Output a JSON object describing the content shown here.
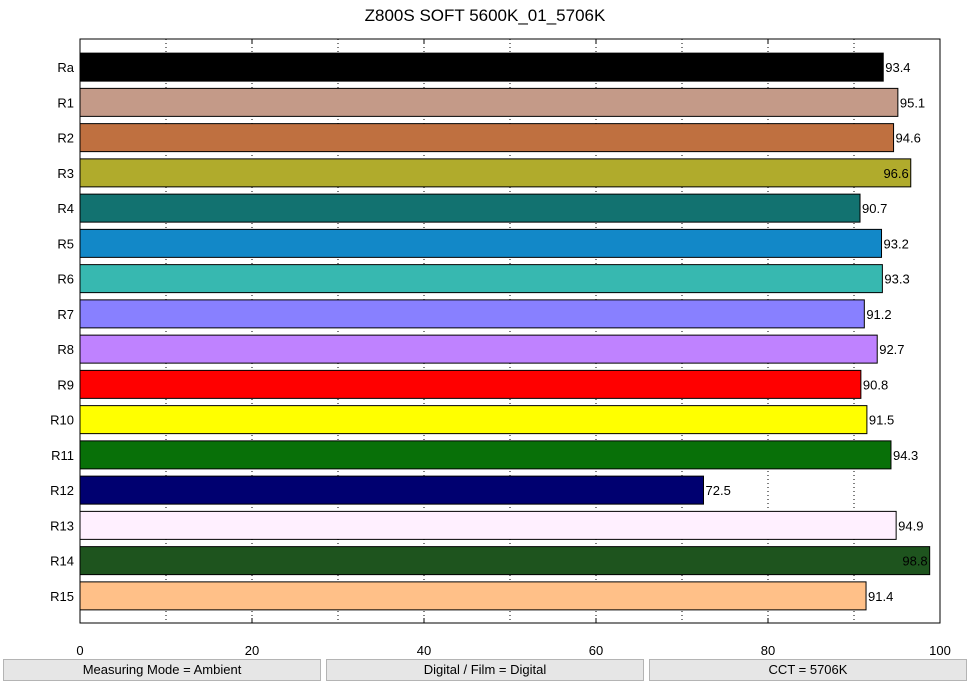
{
  "chart_data": {
    "type": "bar",
    "orientation": "horizontal",
    "title": "Z800S SOFT 5600K_01_5706K",
    "xlabel": "",
    "ylabel": "",
    "xlim": [
      0,
      100
    ],
    "x_ticks": [
      0,
      20,
      40,
      60,
      80,
      100
    ],
    "grid": "vertical dotted lines every 10",
    "categories": [
      "Ra",
      "R1",
      "R2",
      "R3",
      "R4",
      "R5",
      "R6",
      "R7",
      "R8",
      "R9",
      "R10",
      "R11",
      "R12",
      "R13",
      "R14",
      "R15"
    ],
    "values": [
      93.4,
      95.1,
      94.6,
      96.6,
      90.7,
      93.2,
      93.3,
      91.2,
      92.7,
      90.8,
      91.5,
      94.3,
      72.5,
      94.9,
      98.8,
      91.4
    ],
    "value_labels": [
      "93.4",
      "95.1",
      "94.6",
      "96.6",
      "90.7",
      "93.2",
      "93.3",
      "91.2",
      "92.7",
      "90.8",
      "91.5",
      "94.3",
      "72.5",
      "94.9",
      "98.8",
      "91.4"
    ],
    "colors": [
      "#000000",
      "#c49a88",
      "#bf7040",
      "#b0ab2c",
      "#127270",
      "#1288c8",
      "#37b8b0",
      "#8880ff",
      "#bf82ff",
      "#ff0000",
      "#ffff00",
      "#087008",
      "#000070",
      "#fff0ff",
      "#1e541e",
      "#ffc088"
    ]
  },
  "footer": {
    "measuring_mode": "Measuring Mode = Ambient",
    "digital_film": "Digital / Film = Digital",
    "cct": "CCT = 5706K"
  }
}
